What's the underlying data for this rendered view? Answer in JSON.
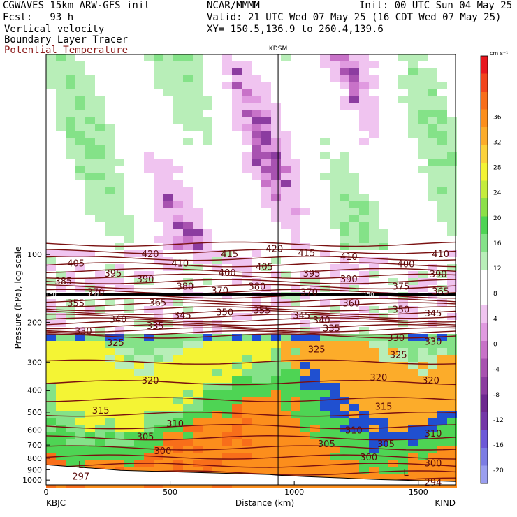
{
  "header": {
    "model": "CGWAVES 15km ARW-GFS init",
    "forecast": "Fcst:   93 h",
    "field1": "Vertical velocity",
    "field2": "Boundary Layer Tracer",
    "field3": "Potential Temperature",
    "org": "NCAR/MMMM",
    "init": "Init: 00 UTC Sun 04 May 25",
    "valid": "Valid: 21 UTC Wed 07 May 25 (16 CDT Wed 07 May 25)",
    "xy": "XY= 150.5,136.9 to 260.4,139.6"
  },
  "chart_data": {
    "type": "heatmap",
    "xlabel": "Distance (km)",
    "ylabel": "Pressure (hPa), log scale",
    "x_ticks": [
      0,
      500,
      1000,
      1500
    ],
    "xlim": [
      0,
      1650
    ],
    "y_ticks": [
      100,
      200,
      300,
      400,
      500,
      600,
      700,
      800,
      900,
      1000
    ],
    "ylim": [
      1050,
      13
    ],
    "y_scale": "log",
    "left_station": "KBJC",
    "right_station": "KIND",
    "marker_station": "KDSM",
    "marker_x": 935,
    "colorbar": {
      "unit": "cm s⁻¹",
      "tick_labels": [
        "36",
        "32",
        "28",
        "24",
        "20",
        "16",
        "12",
        "8",
        "4",
        "0",
        "-4",
        "-8",
        "-12",
        "-16",
        "-20"
      ],
      "colors": [
        "#e8161e",
        "#f2441c",
        "#f86e1a",
        "#fc8e1c",
        "#fcac2a",
        "#fcd23a",
        "#f4f434",
        "#c4ec3c",
        "#8ce048",
        "#4ed454",
        "#84e288",
        "#b8eeb8",
        "#ffffff",
        "#ffffff",
        "#f0c4f0",
        "#e09ae0",
        "#c872c8",
        "#a852b0",
        "#8c3ca0",
        "#6e2890",
        "#7436a8",
        "#6c58d8",
        "#7c7ce4",
        "#9a9ef0"
      ]
    },
    "theta_contours": [
      {
        "label": "297",
        "x": 140,
        "p": 960
      },
      {
        "label": "294",
        "x": 1560,
        "p": 1020
      },
      {
        "label": "300",
        "x": 470,
        "p": 740
      },
      {
        "label": "300",
        "x": 1300,
        "p": 790
      },
      {
        "label": "300",
        "x": 1560,
        "p": 840
      },
      {
        "label": "305",
        "x": 400,
        "p": 640
      },
      {
        "label": "305",
        "x": 1130,
        "p": 690
      },
      {
        "label": "305",
        "x": 1370,
        "p": 690
      },
      {
        "label": "310",
        "x": 520,
        "p": 560
      },
      {
        "label": "310",
        "x": 1240,
        "p": 600
      },
      {
        "label": "310",
        "x": 1560,
        "p": 620
      },
      {
        "label": "315",
        "x": 220,
        "p": 490
      },
      {
        "label": "315",
        "x": 1360,
        "p": 470
      },
      {
        "label": "320",
        "x": 420,
        "p": 360
      },
      {
        "label": "320",
        "x": 1340,
        "p": 350
      },
      {
        "label": "320",
        "x": 1550,
        "p": 360
      },
      {
        "label": "325",
        "x": 280,
        "p": 245
      },
      {
        "label": "325",
        "x": 1090,
        "p": 262
      },
      {
        "label": "325",
        "x": 1420,
        "p": 278
      },
      {
        "label": "330",
        "x": 150,
        "p": 218
      },
      {
        "label": "330",
        "x": 1410,
        "p": 233
      },
      {
        "label": "330",
        "x": 1560,
        "p": 243
      },
      {
        "label": "335",
        "x": 440,
        "p": 207
      },
      {
        "label": "335",
        "x": 1150,
        "p": 212
      },
      {
        "label": "340",
        "x": 290,
        "p": 193
      },
      {
        "label": "340",
        "x": 1110,
        "p": 195
      },
      {
        "label": "345",
        "x": 550,
        "p": 186
      },
      {
        "label": "345",
        "x": 1030,
        "p": 186
      },
      {
        "label": "345",
        "x": 1560,
        "p": 182
      },
      {
        "label": "350",
        "x": 720,
        "p": 180
      },
      {
        "label": "350",
        "x": 1430,
        "p": 175
      },
      {
        "label": "355",
        "x": 120,
        "p": 164
      },
      {
        "label": "355",
        "x": 870,
        "p": 176
      },
      {
        "label": "360",
        "x": 1230,
        "p": 164
      },
      {
        "label": "365",
        "x": 450,
        "p": 163
      },
      {
        "label": "365",
        "x": 1590,
        "p": 145
      },
      {
        "label": "370",
        "x": 200,
        "p": 146
      },
      {
        "label": "370",
        "x": 700,
        "p": 144
      },
      {
        "label": "370",
        "x": 1060,
        "p": 146
      },
      {
        "label": "375",
        "x": 1430,
        "p": 138
      },
      {
        "label": "380",
        "x": 560,
        "p": 138
      },
      {
        "label": "380",
        "x": 850,
        "p": 138
      },
      {
        "label": "385",
        "x": 70,
        "p": 131
      },
      {
        "label": "390",
        "x": 400,
        "p": 128
      },
      {
        "label": "390",
        "x": 1220,
        "p": 128
      },
      {
        "label": "390",
        "x": 1580,
        "p": 122
      },
      {
        "label": "395",
        "x": 270,
        "p": 121
      },
      {
        "label": "395",
        "x": 1070,
        "p": 121
      },
      {
        "label": "400",
        "x": 730,
        "p": 120
      },
      {
        "label": "400",
        "x": 1450,
        "p": 110
      },
      {
        "label": "405",
        "x": 120,
        "p": 109
      },
      {
        "label": "405",
        "x": 880,
        "p": 113
      },
      {
        "label": "410",
        "x": 540,
        "p": 109
      },
      {
        "label": "410",
        "x": 1220,
        "p": 102
      },
      {
        "label": "410",
        "x": 1590,
        "p": 99
      },
      {
        "label": "415",
        "x": 740,
        "p": 99
      },
      {
        "label": "415",
        "x": 1050,
        "p": 98
      },
      {
        "label": "420",
        "x": 420,
        "p": 99
      },
      {
        "label": "420",
        "x": 920,
        "p": 94
      }
    ],
    "inline_labels": [
      {
        "label": "150",
        "x": 20,
        "p": 150
      },
      {
        "label": "150",
        "x": 190,
        "p": 150
      },
      {
        "label": "150",
        "x": 1300,
        "p": 150
      }
    ],
    "lows": [
      {
        "label": "L",
        "x": 140,
        "p": 855
      },
      {
        "label": "L",
        "x": 1450,
        "p": 925
      }
    ],
    "terrain": [
      [
        0,
        855
      ],
      [
        150,
        880
      ],
      [
        300,
        905
      ],
      [
        450,
        915
      ],
      [
        600,
        925
      ],
      [
        750,
        935
      ],
      [
        900,
        945
      ],
      [
        935,
        952
      ],
      [
        1050,
        965
      ],
      [
        1200,
        980
      ],
      [
        1350,
        995
      ],
      [
        1500,
        1005
      ],
      [
        1650,
        1015
      ]
    ],
    "tropopause_p": 200,
    "regions": [
      {
        "name": "boundary-layer-tracer",
        "range_p": [
          1000,
          220
        ],
        "palette": "warm"
      },
      {
        "name": "stratospheric-waves",
        "range_p": [
          90,
          13
        ],
        "palette": "mixed"
      }
    ]
  }
}
